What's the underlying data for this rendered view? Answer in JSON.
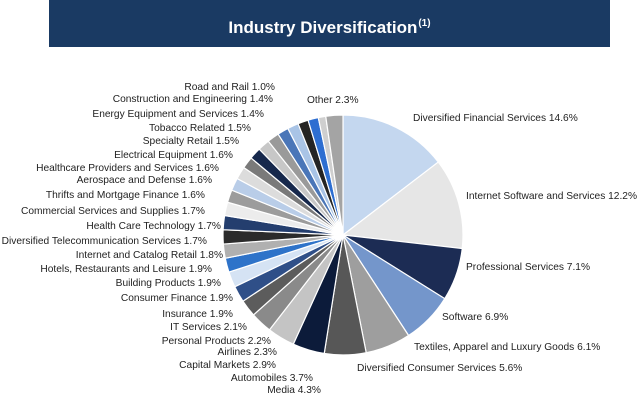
{
  "header": {
    "title": "Industry Diversification",
    "footnote_marker": "(1)"
  },
  "chart_data": {
    "type": "pie",
    "title": "Industry Diversification",
    "legend": "none (direct labels)",
    "slices": [
      {
        "label": "Diversified Financial Services 14.6%",
        "value": 14.6,
        "color": "#c4d7ef"
      },
      {
        "label": "Internet Software and Services 12.2%",
        "value": 12.2,
        "color": "#e6e6e6"
      },
      {
        "label": "Professional Services 7.1%",
        "value": 7.1,
        "color": "#1c2c54"
      },
      {
        "label": "Software 6.9%",
        "value": 6.9,
        "color": "#7496cb"
      },
      {
        "label": "Textiles, Apparel and Luxury Goods 6.1%",
        "value": 6.1,
        "color": "#9e9e9e"
      },
      {
        "label": "Diversified Consumer Services 5.6%",
        "value": 5.6,
        "color": "#575757"
      },
      {
        "label": "Media 4.3%",
        "value": 4.3,
        "color": "#0c1b3a"
      },
      {
        "label": "Automobiles 3.7%",
        "value": 3.7,
        "color": "#c4c4c4"
      },
      {
        "label": "Capital Markets 2.9%",
        "value": 2.9,
        "color": "#8a8a8a"
      },
      {
        "label": "Airlines 2.3%",
        "value": 2.3,
        "color": "#5c5c5c"
      },
      {
        "label": "Personal Products 2.2%",
        "value": 2.2,
        "color": "#2f4f88"
      },
      {
        "label": "IT Services 2.1%",
        "value": 2.1,
        "color": "#d5e3f4"
      },
      {
        "label": "Insurance 1.9%",
        "value": 1.9,
        "color": "#2e73c9"
      },
      {
        "label": "Consumer Finance 1.9%",
        "value": 1.9,
        "color": "#b0b0b0"
      },
      {
        "label": "Building Products 1.9%",
        "value": 1.9,
        "color": "#2b2b2b"
      },
      {
        "label": "Hotels, Restaurants and Leisure 1.9%",
        "value": 1.9,
        "color": "#243e6e"
      },
      {
        "label": "Internet and Catalog Retail 1.8%",
        "value": 1.8,
        "color": "#ececec"
      },
      {
        "label": "Diversified Telecommunication Services 1.7%",
        "value": 1.7,
        "color": "#9c9c9c"
      },
      {
        "label": "Health Care Technology 1.7%",
        "value": 1.7,
        "color": "#b9cde8"
      },
      {
        "label": "Commercial Services and Supplies 1.7%",
        "value": 1.7,
        "color": "#dcdcdc"
      },
      {
        "label": "Thrifts and Mortgage Finance 1.6%",
        "value": 1.6,
        "color": "#7a7a7a"
      },
      {
        "label": "Aerospace and Defense 1.6%",
        "value": 1.6,
        "color": "#16284c"
      },
      {
        "label": "Healthcare Providers and Services 1.6%",
        "value": 1.6,
        "color": "#c7c7c7"
      },
      {
        "label": "Electrical Equipment 1.6%",
        "value": 1.6,
        "color": "#9a9a9a"
      },
      {
        "label": "Specialty Retail 1.5%",
        "value": 1.5,
        "color": "#4a76b8"
      },
      {
        "label": "Tobacco Related 1.5%",
        "value": 1.5,
        "color": "#a9c4e6"
      },
      {
        "label": "Energy Equipment and Services 1.4%",
        "value": 1.4,
        "color": "#242424"
      },
      {
        "label": "Construction and Engineering 1.4%",
        "value": 1.4,
        "color": "#2d6ed1"
      },
      {
        "label": "Road and Rail 1.0%",
        "value": 1.0,
        "color": "#cfcfcf"
      },
      {
        "label": "Other 2.3%",
        "value": 2.3,
        "color": "#a4a4a4"
      }
    ]
  }
}
